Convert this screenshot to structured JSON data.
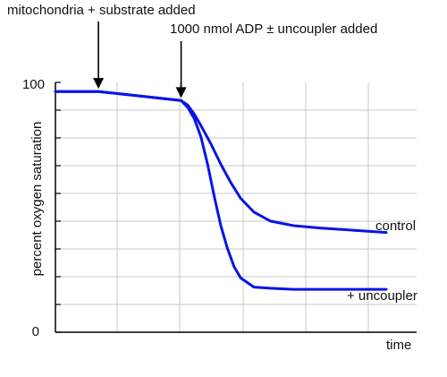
{
  "chart_data": {
    "type": "line",
    "title": "",
    "xlabel": "time",
    "ylabel": "percent oxygen saturation",
    "xlim": [
      0,
      100
    ],
    "ylim": [
      0,
      100
    ],
    "ytick_labels": [
      "0",
      "100"
    ],
    "grid": true,
    "annotations": [
      {
        "text": "mitochondria + substrate added",
        "x": 13
      },
      {
        "text": "1000 nmol ADP ± uncoupler added",
        "x": 38
      }
    ],
    "series": [
      {
        "name": "control",
        "color": "#0a14e6",
        "x": [
          0,
          13,
          38,
          40,
          42,
          44,
          47,
          50,
          53,
          56,
          60,
          65,
          72,
          80,
          90,
          100
        ],
        "y": [
          96,
          96,
          92,
          90,
          86,
          81,
          73,
          64,
          56,
          49,
          43,
          39,
          37,
          36,
          35,
          34
        ]
      },
      {
        "name": "+ uncoupler",
        "color": "#0a14e6",
        "x": [
          0,
          13,
          38,
          40,
          42,
          44,
          46,
          48,
          50,
          52,
          54,
          56,
          60,
          65,
          72,
          80,
          90,
          100
        ],
        "y": [
          96,
          96,
          92,
          89,
          84,
          76,
          64,
          50,
          37,
          27,
          19,
          14,
          10,
          9.5,
          9,
          9,
          9,
          9
        ]
      }
    ]
  }
}
